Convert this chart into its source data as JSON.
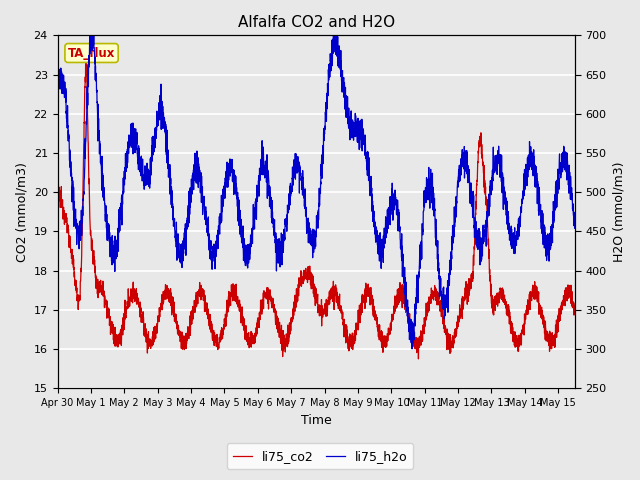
{
  "title": "Alfalfa CO2 and H2O",
  "xlabel": "Time",
  "ylabel_left": "CO2 (mmol/m3)",
  "ylabel_right": "H2O (mmol/m3)",
  "ylim_left": [
    15.0,
    24.0
  ],
  "ylim_right": [
    250,
    700
  ],
  "annotation_text": "TA_flux",
  "annotation_color": "#cc0000",
  "annotation_bg": "#ffffcc",
  "annotation_border": "#b8b800",
  "line_co2_color": "#cc0000",
  "line_h2o_color": "#0000cc",
  "legend_co2": "li75_co2",
  "legend_h2o": "li75_h2o",
  "plot_bg": "#e8e8e8",
  "grid_color": "#ffffff",
  "tick_labels": [
    "Apr 30",
    "May 1",
    "May 2",
    "May 3",
    "May 4",
    "May 5",
    "May 6",
    "May 7",
    "May 8",
    "May 9",
    "May 10",
    "May 11",
    "May 12",
    "May 13",
    "May 14",
    "May 15"
  ],
  "tick_positions": [
    0,
    1,
    2,
    3,
    4,
    5,
    6,
    7,
    8,
    9,
    10,
    11,
    12,
    13,
    14,
    15
  ]
}
